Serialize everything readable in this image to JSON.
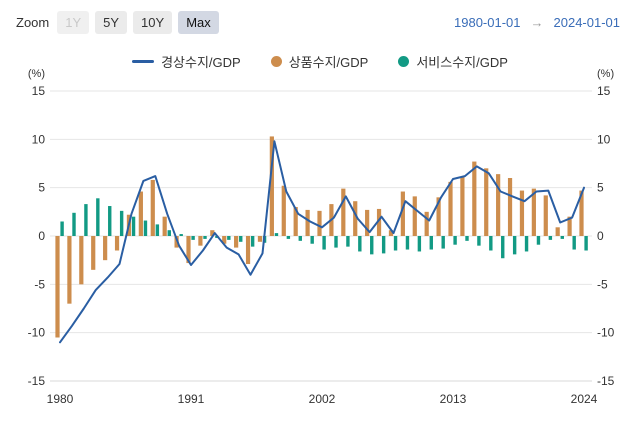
{
  "toolbar": {
    "zoom_label": "Zoom",
    "buttons": [
      {
        "label": "1Y",
        "state": "disabled"
      },
      {
        "label": "5Y",
        "state": "normal"
      },
      {
        "label": "10Y",
        "state": "normal"
      },
      {
        "label": "Max",
        "state": "selected"
      }
    ],
    "date_from": "1980-01-01",
    "date_separator": "→",
    "date_to": "2024-01-01"
  },
  "colors": {
    "line_series": "#2a5ea3",
    "goods_bar": "#cd8d4d",
    "services_bar": "#129a84",
    "date_text": "#3a6db8",
    "grid": "#e6e6e6",
    "axis_line": "#d8d8d8",
    "axis_text": "#333333"
  },
  "chart_data": {
    "type": "combo",
    "title": "",
    "xlabel": "",
    "ylabel": "",
    "y_unit": "(%)",
    "ylim": [
      -15,
      15
    ],
    "yticks": [
      -15,
      -10,
      -5,
      0,
      5,
      10,
      15
    ],
    "xticks": [
      1980,
      1991,
      2002,
      2013,
      2024
    ],
    "grid": true,
    "legend_position": "top",
    "x": [
      1980,
      1981,
      1982,
      1983,
      1984,
      1985,
      1986,
      1987,
      1988,
      1989,
      1990,
      1991,
      1992,
      1993,
      1994,
      1995,
      1996,
      1997,
      1998,
      1999,
      2000,
      2001,
      2002,
      2003,
      2004,
      2005,
      2006,
      2007,
      2008,
      2009,
      2010,
      2011,
      2012,
      2013,
      2014,
      2015,
      2016,
      2017,
      2018,
      2019,
      2020,
      2021,
      2022,
      2023,
      2024
    ],
    "series": [
      {
        "name": "경상수지/GDP",
        "type": "line",
        "color": "#2a5ea3",
        "values": [
          -11.0,
          -9.3,
          -7.5,
          -5.6,
          -4.3,
          -2.9,
          2.3,
          5.7,
          6.2,
          2.3,
          -1.0,
          -3.0,
          -1.5,
          0.3,
          -1.2,
          -1.9,
          -4.0,
          -1.8,
          9.8,
          4.6,
          2.3,
          1.5,
          0.9,
          1.9,
          4.1,
          1.8,
          0.4,
          2.0,
          0.3,
          3.6,
          2.6,
          1.6,
          4.0,
          5.9,
          6.2,
          7.2,
          6.5,
          4.6,
          4.1,
          3.6,
          4.6,
          4.7,
          1.4,
          1.9,
          5.0
        ]
      },
      {
        "name": "상품수지/GDP",
        "type": "bar",
        "color": "#cd8d4d",
        "values": [
          -10.5,
          -7.0,
          -5.0,
          -3.5,
          -2.5,
          -1.5,
          2.2,
          4.6,
          5.8,
          2.0,
          -1.2,
          -2.8,
          -1.0,
          0.6,
          -0.8,
          -1.2,
          -2.9,
          -0.6,
          10.3,
          5.2,
          3.0,
          2.7,
          2.6,
          3.3,
          4.9,
          3.6,
          2.7,
          2.8,
          0.6,
          4.6,
          4.1,
          2.5,
          4.0,
          5.6,
          6.1,
          7.7,
          7.0,
          6.4,
          6.0,
          4.7,
          4.9,
          4.2,
          0.9,
          2.0,
          4.7
        ]
      },
      {
        "name": "서비스수지/GDP",
        "type": "bar",
        "color": "#129a84",
        "values": [
          1.5,
          2.4,
          3.3,
          3.9,
          3.1,
          2.6,
          2.0,
          1.6,
          1.2,
          0.6,
          0.2,
          -0.4,
          -0.3,
          -0.2,
          -0.4,
          -0.6,
          -1.1,
          -0.7,
          0.3,
          -0.3,
          -0.5,
          -0.8,
          -1.4,
          -1.2,
          -1.1,
          -1.6,
          -1.9,
          -1.8,
          -1.5,
          -1.4,
          -1.6,
          -1.4,
          -1.3,
          -0.9,
          -0.5,
          -1.0,
          -1.5,
          -2.3,
          -1.9,
          -1.6,
          -0.9,
          -0.4,
          -0.3,
          -1.4,
          -1.5
        ]
      }
    ]
  }
}
